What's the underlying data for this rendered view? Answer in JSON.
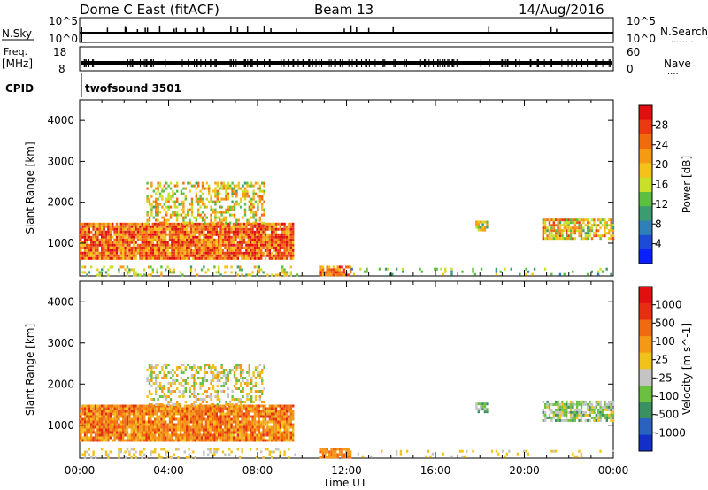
{
  "header": {
    "station": "Dome C East (fitACF)",
    "beam": "Beam 13",
    "date": "14/Aug/2016"
  },
  "strips": {
    "nsky": {
      "label": "N.Sky",
      "left_ticks": [
        "10^5",
        "10^0"
      ],
      "right_ticks": [
        "10^5",
        "10^0"
      ],
      "right_label": "N.Search",
      "right_label_dots": "........",
      "spikes_hours": [
        1.25,
        2.05,
        2.1,
        2.6,
        2.95,
        3.05,
        3.6,
        4.25,
        4.35,
        4.75,
        5.3,
        5.55,
        5.6,
        6.8,
        7.1,
        7.55,
        8.3,
        8.6,
        9.75,
        11.9,
        12.2,
        12.45,
        13.0,
        14.1,
        18.4,
        21.2,
        21.45
      ]
    },
    "freq": {
      "label_line1": "Freq.",
      "label_line2": "[MHz]",
      "left_ticks": [
        "18",
        "8"
      ],
      "right_ticks": [
        "60",
        "0"
      ],
      "right_label": "Nave",
      "right_label_dots": "...."
    },
    "cpid": {
      "label": "CPID",
      "program": "twofsound 3501"
    }
  },
  "chart_data": [
    {
      "type": "heatmap",
      "name": "power",
      "ylabel": "Slant Range [km]",
      "xlabel": "Time UT",
      "xlim_hours": [
        0,
        24
      ],
      "ylim_km": [
        200,
        4500
      ],
      "x_ticks": [
        "00:00",
        "04:00",
        "08:00",
        "12:00",
        "16:00",
        "20:00",
        "00:00"
      ],
      "y_ticks": [
        1000,
        2000,
        3000,
        4000
      ],
      "colorbar": {
        "label": "Power [dB]",
        "ticks": [
          "4",
          "8",
          "12",
          "16",
          "20",
          "24",
          "28"
        ],
        "range": [
          0,
          32
        ],
        "colors": [
          "#0a1fff",
          "#1d4bd6",
          "#2f7fb8",
          "#3a9c70",
          "#5dbf3f",
          "#c8e02a",
          "#f4c21a",
          "#f59a12",
          "#f06a0e",
          "#ea3a10",
          "#e01010"
        ]
      },
      "features": [
        {
          "hours": [
            0.0,
            9.6
          ],
          "km": [
            600,
            1500
          ],
          "level_min": 0.55,
          "level_max": 1.0,
          "density": 0.95
        },
        {
          "hours": [
            3.0,
            8.3
          ],
          "km": [
            1500,
            2500
          ],
          "level_min": 0.35,
          "level_max": 0.8,
          "density": 0.45
        },
        {
          "hours": [
            0.0,
            9.8
          ],
          "km": [
            250,
            450
          ],
          "level_min": 0.3,
          "level_max": 0.7,
          "density": 0.25
        },
        {
          "hours": [
            10.8,
            12.2
          ],
          "km": [
            250,
            450
          ],
          "level_min": 0.6,
          "level_max": 0.95,
          "density": 0.9
        },
        {
          "hours": [
            12.2,
            24.0
          ],
          "km": [
            250,
            400
          ],
          "level_min": 0.2,
          "level_max": 0.6,
          "density": 0.12
        },
        {
          "hours": [
            17.8,
            18.3
          ],
          "km": [
            1350,
            1550
          ],
          "level_min": 0.3,
          "level_max": 0.7,
          "density": 0.8
        },
        {
          "hours": [
            20.8,
            24.0
          ],
          "km": [
            1100,
            1600
          ],
          "level_min": 0.35,
          "level_max": 0.85,
          "density": 0.75
        }
      ]
    },
    {
      "type": "heatmap",
      "name": "velocity",
      "ylabel": "Slant Range [km]",
      "xlabel": "Time UT",
      "xlim_hours": [
        0,
        24
      ],
      "ylim_km": [
        200,
        4500
      ],
      "x_ticks": [
        "00:00",
        "04:00",
        "08:00",
        "12:00",
        "16:00",
        "20:00",
        "00:00"
      ],
      "y_ticks": [
        1000,
        2000,
        3000,
        4000
      ],
      "colorbar": {
        "label": "Velocity [m s^-1]",
        "ticks": [
          "1000",
          "500",
          "100",
          "25",
          "-25",
          "-100",
          "-500",
          "-1000"
        ],
        "range": [
          -1000,
          1000
        ],
        "colors": [
          "#1230c8",
          "#2a62c0",
          "#3a9060",
          "#6cc040",
          "#c4c4c4",
          "#f2c21c",
          "#f59818",
          "#f06a10",
          "#e62e10",
          "#e01010"
        ]
      },
      "features": [
        {
          "hours": [
            0.0,
            9.6
          ],
          "km": [
            600,
            1500
          ],
          "level_min": 0.55,
          "level_max": 0.85,
          "density": 0.95
        },
        {
          "hours": [
            3.0,
            8.3
          ],
          "km": [
            1500,
            2500
          ],
          "level_min": 0.3,
          "level_max": 0.7,
          "density": 0.45
        },
        {
          "hours": [
            0.0,
            9.8
          ],
          "km": [
            250,
            450
          ],
          "level_min": 0.45,
          "level_max": 0.6,
          "density": 0.25
        },
        {
          "hours": [
            10.8,
            12.2
          ],
          "km": [
            250,
            450
          ],
          "level_min": 0.6,
          "level_max": 0.75,
          "density": 0.9
        },
        {
          "hours": [
            12.2,
            24.0
          ],
          "km": [
            250,
            400
          ],
          "level_min": 0.45,
          "level_max": 0.6,
          "density": 0.12
        },
        {
          "hours": [
            17.8,
            18.3
          ],
          "km": [
            1350,
            1550
          ],
          "level_min": 0.2,
          "level_max": 0.45,
          "density": 0.8
        },
        {
          "hours": [
            20.8,
            24.0
          ],
          "km": [
            1100,
            1600
          ],
          "level_min": 0.25,
          "level_max": 0.55,
          "density": 0.75
        }
      ]
    }
  ]
}
